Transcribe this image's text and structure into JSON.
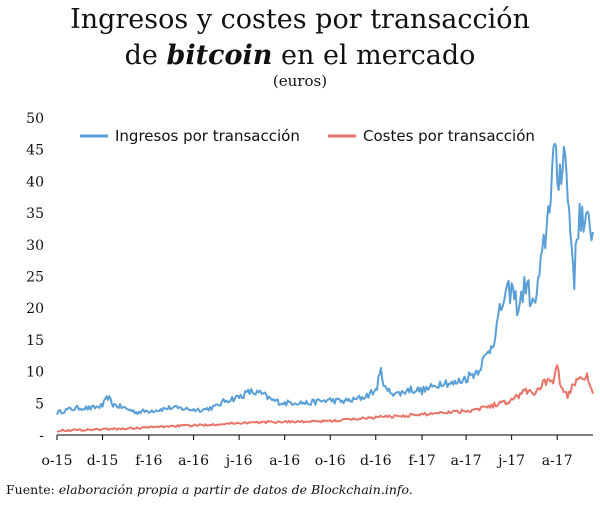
{
  "title": {
    "line1": "Ingresos y costes por transacción",
    "line2_pre": "de ",
    "line2_em": "bitcoin",
    "line2_post": " en el mercado"
  },
  "subtitle": "(euros)",
  "source": {
    "prefix": "Fuente: ",
    "text": "elaboración propia a partir de datos de Blockchain.info."
  },
  "colors": {
    "ingresos": "#5a9fd6",
    "costes": "#e8756b",
    "axis": "#000000"
  },
  "chart_data": {
    "type": "line",
    "ylim": [
      0,
      50
    ],
    "yticks": [
      0,
      5,
      10,
      15,
      20,
      25,
      30,
      35,
      40,
      45,
      50
    ],
    "ytick_labels": [
      "-",
      "5",
      "10",
      "15",
      "20",
      "25",
      "30",
      "35",
      "40",
      "45",
      "50"
    ],
    "xlim": [
      "2015-10-01",
      "2017-09-18"
    ],
    "xticks": [
      {
        "date": "2015-10-01",
        "label": "o-15"
      },
      {
        "date": "2015-12-01",
        "label": "d-15"
      },
      {
        "date": "2016-02-01",
        "label": "f-16"
      },
      {
        "date": "2016-04-01",
        "label": "a-16"
      },
      {
        "date": "2016-06-01",
        "label": "j-16"
      },
      {
        "date": "2016-08-01",
        "label": "a-16"
      },
      {
        "date": "2016-10-01",
        "label": "o-16"
      },
      {
        "date": "2016-12-01",
        "label": "d-16"
      },
      {
        "date": "2017-02-01",
        "label": "f-17"
      },
      {
        "date": "2017-04-01",
        "label": "a-17"
      },
      {
        "date": "2017-06-01",
        "label": "j-17"
      },
      {
        "date": "2017-08-01",
        "label": "a-17"
      }
    ],
    "legend_position": "top",
    "series": [
      {
        "name": "Ingresos por transacción",
        "color": "#5a9fd6",
        "points": [
          [
            "2015-10-01",
            3.5
          ],
          [
            "2015-10-15",
            4.0
          ],
          [
            "2015-11-01",
            4.3
          ],
          [
            "2015-11-15",
            4.2
          ],
          [
            "2015-12-01",
            4.6
          ],
          [
            "2015-12-08",
            6.0
          ],
          [
            "2015-12-15",
            4.8
          ],
          [
            "2016-01-01",
            4.2
          ],
          [
            "2016-01-15",
            3.6
          ],
          [
            "2016-02-01",
            3.8
          ],
          [
            "2016-02-15",
            4.0
          ],
          [
            "2016-03-01",
            4.3
          ],
          [
            "2016-03-15",
            4.2
          ],
          [
            "2016-04-01",
            4.0
          ],
          [
            "2016-04-15",
            4.0
          ],
          [
            "2016-05-01",
            4.5
          ],
          [
            "2016-05-15",
            5.5
          ],
          [
            "2016-06-01",
            6.0
          ],
          [
            "2016-06-15",
            6.8
          ],
          [
            "2016-07-01",
            6.5
          ],
          [
            "2016-07-15",
            5.5
          ],
          [
            "2016-08-01",
            5.0
          ],
          [
            "2016-08-15",
            5.2
          ],
          [
            "2016-09-01",
            5.0
          ],
          [
            "2016-09-15",
            5.3
          ],
          [
            "2016-10-01",
            5.5
          ],
          [
            "2016-10-15",
            5.3
          ],
          [
            "2016-11-01",
            5.5
          ],
          [
            "2016-11-15",
            6.0
          ],
          [
            "2016-12-01",
            7.0
          ],
          [
            "2016-12-08",
            10.0
          ],
          [
            "2016-12-15",
            7.0
          ],
          [
            "2017-01-01",
            6.5
          ],
          [
            "2017-01-15",
            7.2
          ],
          [
            "2017-02-01",
            7.0
          ],
          [
            "2017-02-15",
            7.5
          ],
          [
            "2017-03-01",
            8.5
          ],
          [
            "2017-03-15",
            8.0
          ],
          [
            "2017-04-01",
            9.0
          ],
          [
            "2017-04-15",
            10.0
          ],
          [
            "2017-05-01",
            13.0
          ],
          [
            "2017-05-10",
            16.0
          ],
          [
            "2017-05-20",
            21.0
          ],
          [
            "2017-06-01",
            23.0
          ],
          [
            "2017-06-10",
            20.0
          ],
          [
            "2017-06-20",
            24.0
          ],
          [
            "2017-07-01",
            20.0
          ],
          [
            "2017-07-10",
            26.0
          ],
          [
            "2017-07-20",
            35.0
          ],
          [
            "2017-07-27",
            44.0
          ],
          [
            "2017-08-03",
            40.0
          ],
          [
            "2017-08-10",
            46.0
          ],
          [
            "2017-08-17",
            35.0
          ],
          [
            "2017-08-24",
            25.0
          ],
          [
            "2017-08-31",
            36.0
          ],
          [
            "2017-09-07",
            32.0
          ],
          [
            "2017-09-14",
            34.0
          ],
          [
            "2017-09-18",
            32.0
          ]
        ]
      },
      {
        "name": "Costes por transacción",
        "color": "#e8756b",
        "points": [
          [
            "2015-10-01",
            0.7
          ],
          [
            "2015-11-01",
            0.8
          ],
          [
            "2015-12-01",
            0.9
          ],
          [
            "2016-01-01",
            1.0
          ],
          [
            "2016-02-01",
            1.2
          ],
          [
            "2016-03-01",
            1.4
          ],
          [
            "2016-04-01",
            1.5
          ],
          [
            "2016-05-01",
            1.7
          ],
          [
            "2016-06-01",
            1.9
          ],
          [
            "2016-07-01",
            2.0
          ],
          [
            "2016-08-01",
            2.1
          ],
          [
            "2016-09-01",
            2.1
          ],
          [
            "2016-10-01",
            2.2
          ],
          [
            "2016-11-01",
            2.5
          ],
          [
            "2016-12-01",
            2.8
          ],
          [
            "2017-01-01",
            3.0
          ],
          [
            "2017-02-01",
            3.2
          ],
          [
            "2017-03-01",
            3.6
          ],
          [
            "2017-04-01",
            3.8
          ],
          [
            "2017-05-01",
            4.5
          ],
          [
            "2017-06-01",
            5.5
          ],
          [
            "2017-06-20",
            7.0
          ],
          [
            "2017-07-01",
            6.5
          ],
          [
            "2017-07-15",
            8.5
          ],
          [
            "2017-07-25",
            8.0
          ],
          [
            "2017-08-01",
            10.5
          ],
          [
            "2017-08-08",
            7.0
          ],
          [
            "2017-08-15",
            6.0
          ],
          [
            "2017-08-25",
            8.5
          ],
          [
            "2017-09-01",
            9.5
          ],
          [
            "2017-09-10",
            9.0
          ],
          [
            "2017-09-18",
            6.5
          ]
        ]
      }
    ]
  }
}
